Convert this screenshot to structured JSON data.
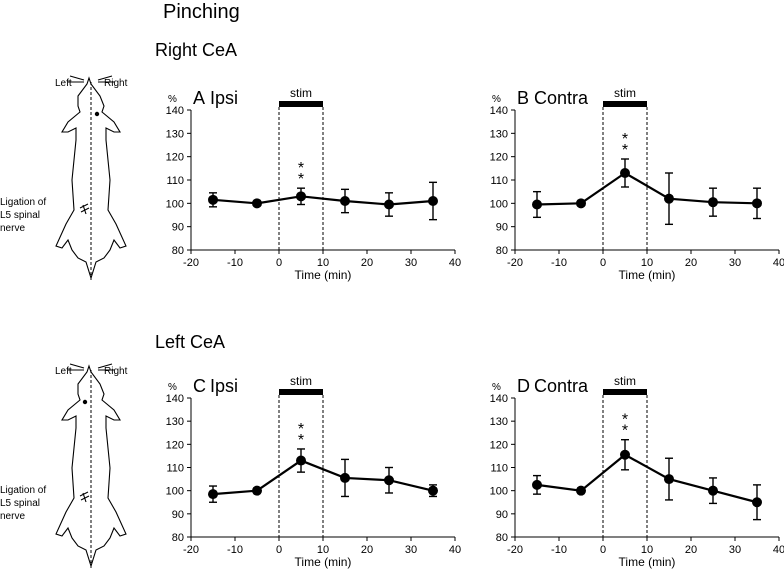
{
  "figure": {
    "title": "Pinching",
    "sections": [
      {
        "title": "Right CeA",
        "left_label": "Left",
        "right_label": "Right",
        "ligation_label": [
          "Ligation of",
          "L5 spinal",
          "nerve"
        ]
      },
      {
        "title": "Left CeA",
        "left_label": "Left",
        "right_label": "Right",
        "ligation_label": [
          "Ligation of",
          "L5 spinal",
          "nerve"
        ]
      }
    ]
  },
  "chart_data": [
    {
      "type": "line",
      "panel": "A",
      "title": "Ipsi",
      "xlabel": "Time (min)",
      "ylabel": "%",
      "xlim": [
        -20,
        40
      ],
      "ylim": [
        80,
        140
      ],
      "xticks": [
        "-20",
        "-10",
        "0",
        "10",
        "20",
        "30",
        "40"
      ],
      "yticks": [
        "80",
        "90",
        "100",
        "110",
        "120",
        "130",
        "140"
      ],
      "stim_label": "stim",
      "stim_range": [
        0,
        10
      ],
      "x": [
        -15,
        -5,
        5,
        15,
        25,
        35
      ],
      "values": [
        101.5,
        100,
        103,
        101,
        99.5,
        101
      ],
      "error": [
        3,
        1,
        3.5,
        5,
        5,
        8
      ],
      "significance": [
        {
          "x": 5,
          "label": "**"
        }
      ]
    },
    {
      "type": "line",
      "panel": "B",
      "title": "Contra",
      "xlabel": "Time (min)",
      "ylabel": "%",
      "xlim": [
        -20,
        40
      ],
      "ylim": [
        80,
        140
      ],
      "xticks": [
        "-20",
        "-10",
        "0",
        "10",
        "20",
        "30",
        "40"
      ],
      "yticks": [
        "80",
        "90",
        "100",
        "110",
        "120",
        "130",
        "140"
      ],
      "stim_label": "stim",
      "stim_range": [
        0,
        10
      ],
      "x": [
        -15,
        -5,
        5,
        15,
        25,
        35
      ],
      "values": [
        99.5,
        100,
        113,
        102,
        100.5,
        100
      ],
      "error": [
        5.5,
        1,
        6,
        11,
        6,
        6.5
      ],
      "significance": [
        {
          "x": 5,
          "label": "**"
        }
      ]
    },
    {
      "type": "line",
      "panel": "C",
      "title": "Ipsi",
      "xlabel": "Time (min)",
      "ylabel": "%",
      "xlim": [
        -20,
        40
      ],
      "ylim": [
        80,
        140
      ],
      "xticks": [
        "-20",
        "-10",
        "0",
        "10",
        "20",
        "30",
        "40"
      ],
      "yticks": [
        "80",
        "90",
        "100",
        "110",
        "120",
        "130",
        "140"
      ],
      "stim_label": "stim",
      "stim_range": [
        0,
        10
      ],
      "x": [
        -15,
        -5,
        5,
        15,
        25,
        35
      ],
      "values": [
        98.5,
        100,
        113,
        105.5,
        104.5,
        100
      ],
      "error": [
        3.5,
        1,
        5,
        8,
        5.5,
        2.5
      ],
      "significance": [
        {
          "x": 5,
          "label": "**"
        }
      ]
    },
    {
      "type": "line",
      "panel": "D",
      "title": "Contra",
      "xlabel": "Time (min)",
      "ylabel": "%",
      "xlim": [
        -20,
        40
      ],
      "ylim": [
        80,
        140
      ],
      "xticks": [
        "-20",
        "-10",
        "0",
        "10",
        "20",
        "30",
        "40"
      ],
      "yticks": [
        "80",
        "90",
        "100",
        "110",
        "120",
        "130",
        "140"
      ],
      "stim_label": "stim",
      "stim_range": [
        0,
        10
      ],
      "x": [
        -15,
        -5,
        5,
        15,
        25,
        35
      ],
      "values": [
        102.5,
        100,
        115.5,
        105,
        100,
        95
      ],
      "error": [
        4,
        1,
        6.5,
        9,
        5.5,
        7.5
      ],
      "significance": [
        {
          "x": 5,
          "label": "**"
        }
      ]
    }
  ]
}
